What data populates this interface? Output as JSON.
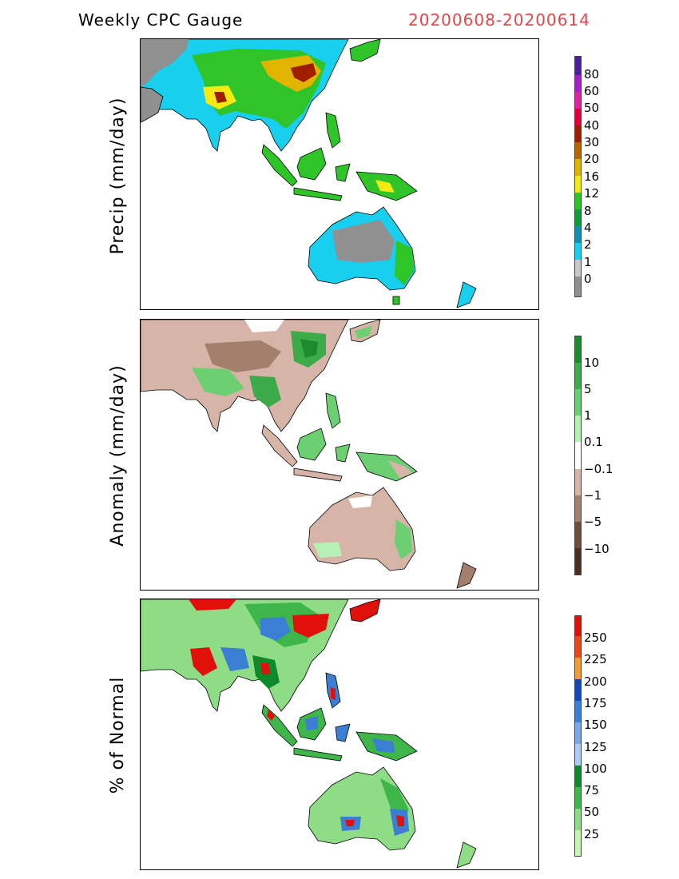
{
  "header": {
    "title": "Weekly CPC Gauge",
    "date_range": "20200608-20200614"
  },
  "panels": [
    {
      "ylabel": "Precip (mm/day)",
      "colorbar": {
        "labels": [
          "80",
          "60",
          "50",
          "40",
          "30",
          "20",
          "16",
          "12",
          "8",
          "4",
          "2",
          "1",
          "0"
        ],
        "colors": [
          "#4b1e9c",
          "#a71ec9",
          "#e0229e",
          "#e3003a",
          "#a01e00",
          "#b86500",
          "#e0b400",
          "#f2ea12",
          "#2fc427",
          "#0a9d3c",
          "#0f8fb4",
          "#18cfee",
          "#909090"
        ]
      }
    },
    {
      "ylabel": "Anomaly (mm/day)",
      "colorbar": {
        "labels": [
          "10",
          "5",
          "1",
          "0.1",
          "−0.1",
          "−1",
          "−5",
          "−10"
        ],
        "colors": [
          "#1e8a2e",
          "#3dab4a",
          "#6ccf72",
          "#b7f0b4",
          "#ffffff",
          "#d6b4a8",
          "#a57f6e",
          "#6e4d3e",
          "#4b2e22"
        ]
      }
    },
    {
      "ylabel": "% of Normal",
      "colorbar": {
        "labels": [
          "250",
          "225",
          "200",
          "175",
          "150",
          "125",
          "100",
          "75",
          "50",
          "25"
        ],
        "colors": [
          "#e0100a",
          "#e8481a",
          "#f29a3a",
          "#1447bc",
          "#3a7fd4",
          "#7aaae8",
          "#aecbf3",
          "#0e8a2c",
          "#3fb64a",
          "#8fdc87",
          "#c7f5b5"
        ]
      }
    }
  ]
}
